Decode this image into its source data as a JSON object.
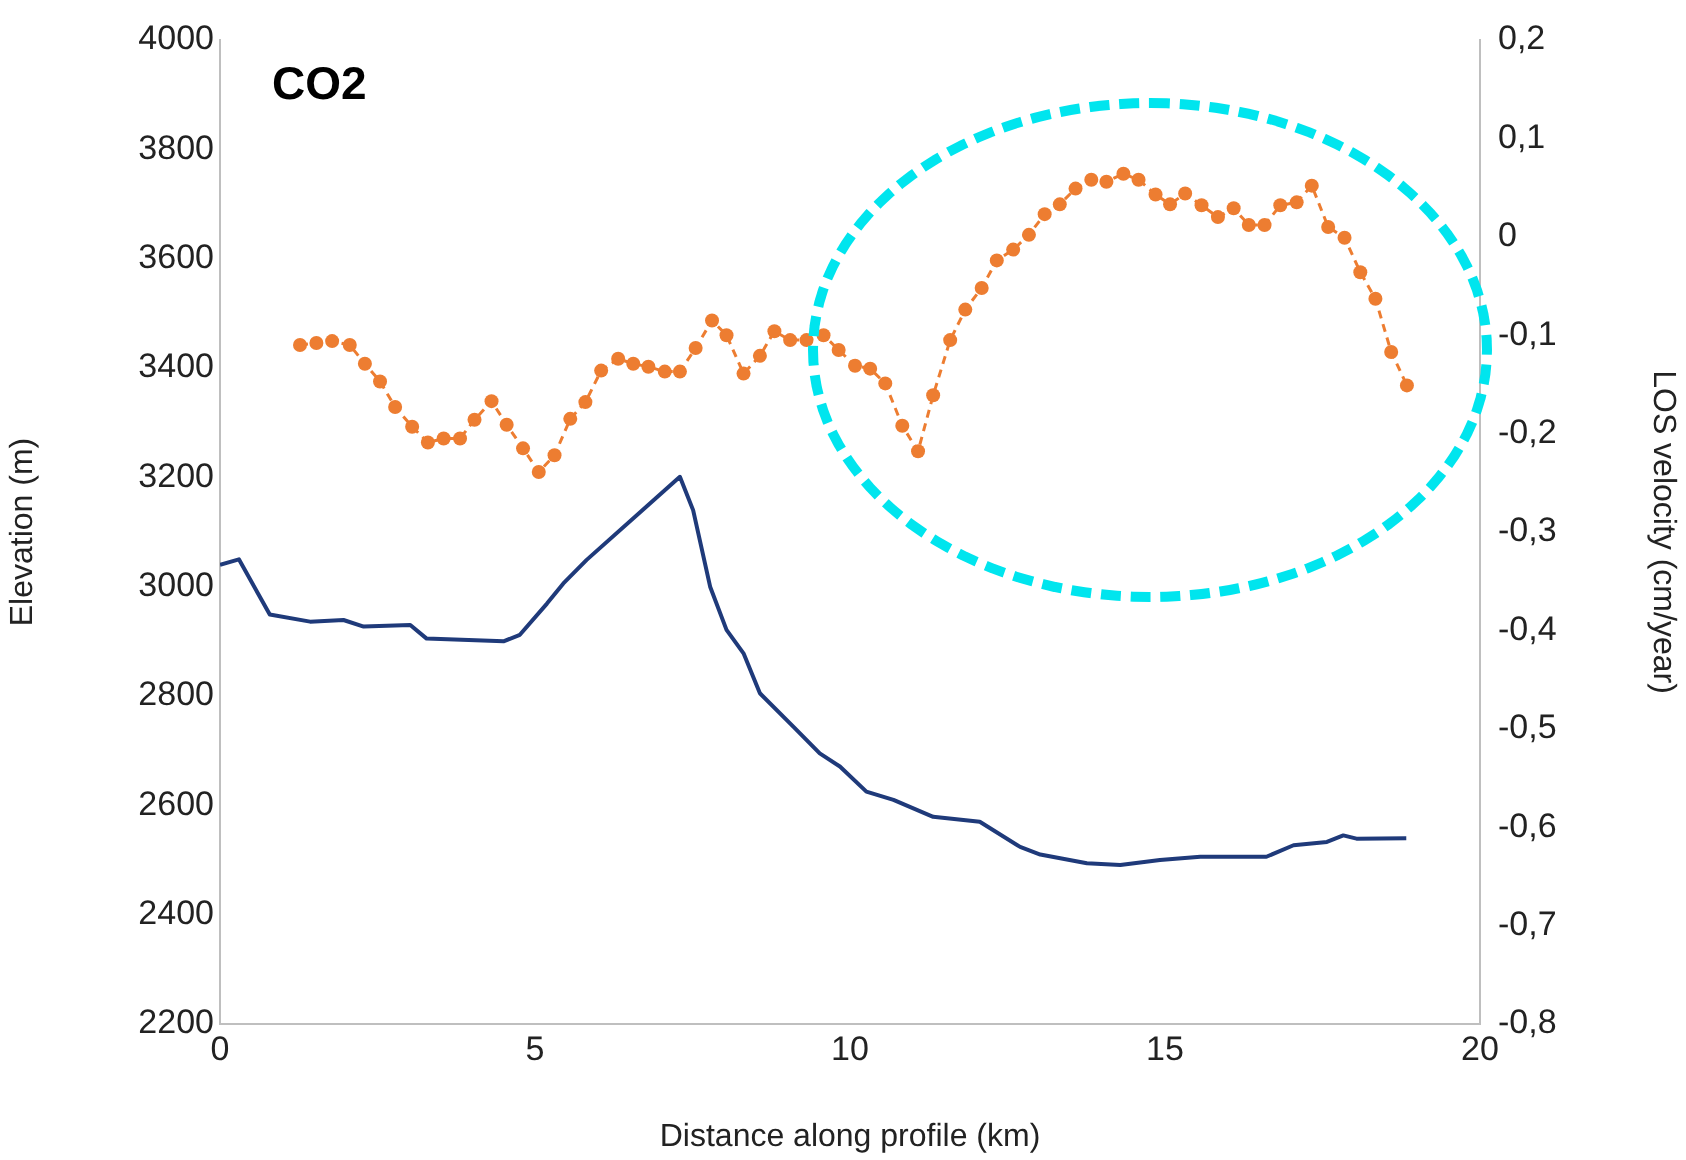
{
  "chart_data": {
    "type": "line",
    "title": "CO2",
    "xlabel": "Distance along profile (km)",
    "ylabel": "Elevation (m)",
    "y2label": "LOS velocity (cm/year)",
    "xlim": [
      0,
      20
    ],
    "xticks": [
      0,
      5,
      10,
      15,
      20
    ],
    "ylim": [
      2200,
      4000
    ],
    "yticks": [
      2200,
      2400,
      2600,
      2800,
      3000,
      3200,
      3400,
      3600,
      3800,
      4000
    ],
    "y2lim": [
      -0.8,
      0.2
    ],
    "y2ticks": [
      {
        "value": -0.8,
        "label": "-0,8"
      },
      {
        "value": -0.7,
        "label": "-0,7"
      },
      {
        "value": -0.6,
        "label": "-0,6"
      },
      {
        "value": -0.5,
        "label": "-0,5"
      },
      {
        "value": -0.4,
        "label": "-0,4"
      },
      {
        "value": -0.3,
        "label": "-0,3"
      },
      {
        "value": -0.2,
        "label": "-0,2"
      },
      {
        "value": -0.1,
        "label": "-0,1"
      },
      0,
      {
        "value": 0.1,
        "label": "0,1"
      },
      {
        "value": 0.2,
        "label": "0,2"
      }
    ],
    "grid": false,
    "legend": false,
    "series": [
      {
        "type": "line",
        "color": "#1f3a7a",
        "axis": "y",
        "marker": "none",
        "line_style": "solid",
        "x": [
          0,
          0.3,
          0.79,
          1.43,
          1.96,
          2.28,
          3.02,
          3.28,
          4.5,
          4.76,
          5.19,
          5.45,
          5.82,
          7.3,
          7.51,
          7.78,
          8.04,
          8.31,
          8.57,
          9.1,
          9.52,
          9.84,
          10.26,
          10.69,
          11.32,
          12.06,
          12.7,
          13.02,
          13.76,
          14.29,
          14.92,
          15.56,
          16.61,
          17.04,
          17.57,
          17.83,
          18.04,
          18.83
        ],
        "values": [
          3040,
          3050,
          2949,
          2936,
          2939,
          2927,
          2930,
          2905,
          2900,
          2912,
          2969,
          3006,
          3049,
          3201,
          3140,
          3000,
          2921,
          2878,
          2805,
          2744,
          2695,
          2671,
          2625,
          2610,
          2579,
          2570,
          2524,
          2510,
          2494,
          2491,
          2500,
          2506,
          2506,
          2527,
          2533,
          2545,
          2539,
          2540
        ]
      },
      {
        "type": "line",
        "color": "#ed7d31",
        "axis": "y2",
        "marker": "circle",
        "line_style": "dashed",
        "x": [
          1.27,
          1.53,
          1.78,
          2.06,
          2.3,
          2.54,
          2.78,
          3.05,
          3.3,
          3.55,
          3.81,
          4.04,
          4.31,
          4.55,
          4.81,
          5.06,
          5.31,
          5.56,
          5.8,
          6.05,
          6.32,
          6.56,
          6.8,
          7.06,
          7.3,
          7.55,
          7.81,
          8.04,
          8.31,
          8.57,
          8.8,
          9.05,
          9.31,
          9.58,
          9.82,
          10.08,
          10.32,
          10.56,
          10.83,
          11.08,
          11.32,
          11.59,
          11.83,
          12.09,
          12.33,
          12.59,
          12.84,
          13.09,
          13.33,
          13.58,
          13.83,
          14.07,
          14.34,
          14.58,
          14.85,
          15.08,
          15.32,
          15.58,
          15.84,
          16.09,
          16.33,
          16.58,
          16.83,
          17.09,
          17.33,
          17.59,
          17.85,
          18.1,
          18.34,
          18.59,
          18.84
        ],
        "values": [
          -0.11,
          -0.108,
          -0.106,
          -0.11,
          -0.129,
          -0.147,
          -0.173,
          -0.193,
          -0.209,
          -0.205,
          -0.205,
          -0.186,
          -0.167,
          -0.191,
          -0.215,
          -0.239,
          -0.222,
          -0.185,
          -0.168,
          -0.136,
          -0.124,
          -0.129,
          -0.132,
          -0.137,
          -0.137,
          -0.113,
          -0.085,
          -0.1,
          -0.139,
          -0.121,
          -0.096,
          -0.105,
          -0.105,
          -0.1,
          -0.115,
          -0.131,
          -0.134,
          -0.149,
          -0.192,
          -0.218,
          -0.161,
          -0.105,
          -0.074,
          -0.052,
          -0.024,
          -0.013,
          0.002,
          0.023,
          0.033,
          0.049,
          0.058,
          0.056,
          0.064,
          0.058,
          0.043,
          0.033,
          0.044,
          0.032,
          0.02,
          0.029,
          0.012,
          0.012,
          0.032,
          0.035,
          0.052,
          0.01,
          -0.001,
          -0.036,
          -0.063,
          -0.117,
          -0.151
        ]
      }
    ]
  }
}
